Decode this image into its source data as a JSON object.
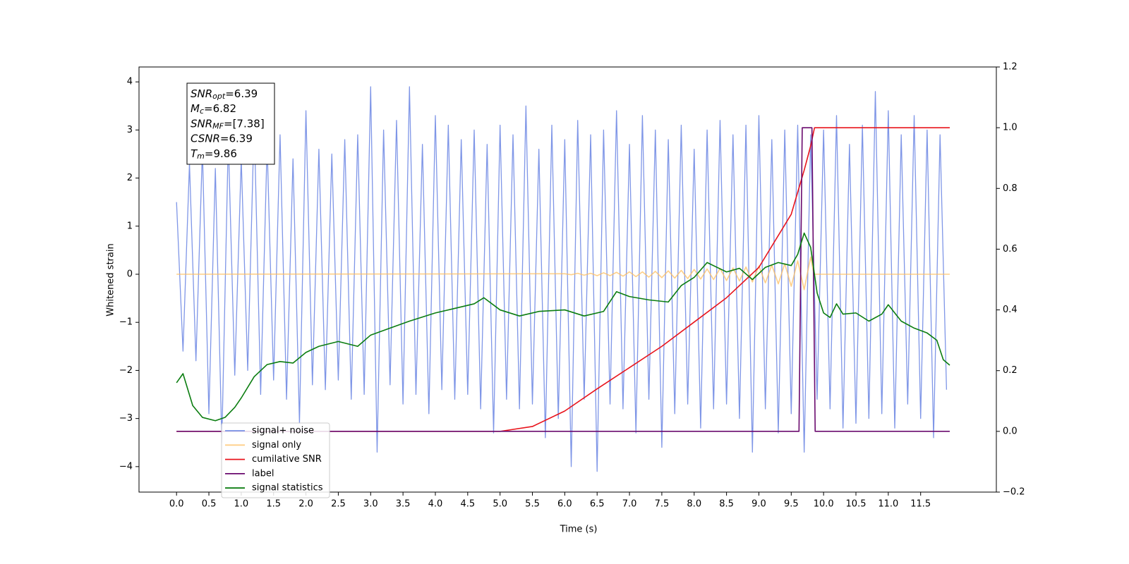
{
  "chart_data": {
    "type": "line",
    "xlabel": "Time (s)",
    "ylabel": "Whitened strain",
    "xlim": [
      -0.58,
      12.67
    ],
    "ylim": [
      -4.53,
      4.31
    ],
    "y2lim": [
      -0.2,
      1.2
    ],
    "xticks": [
      {
        "value": 0,
        "label": "0.0"
      },
      {
        "value": 0.5,
        "label": "0.5"
      },
      {
        "value": 1,
        "label": "1.0"
      },
      {
        "value": 1.5,
        "label": "1.5"
      },
      {
        "value": 2,
        "label": "2.0"
      },
      {
        "value": 2.5,
        "label": "2.5"
      },
      {
        "value": 3,
        "label": "3.0"
      },
      {
        "value": 3.5,
        "label": "3.5"
      },
      {
        "value": 4,
        "label": "4.0"
      },
      {
        "value": 4.5,
        "label": "4.5"
      },
      {
        "value": 5,
        "label": "5.0"
      },
      {
        "value": 5.5,
        "label": "5.5"
      },
      {
        "value": 6,
        "label": "6.0"
      },
      {
        "value": 6.5,
        "label": "6.5"
      },
      {
        "value": 7,
        "label": "7.0"
      },
      {
        "value": 7.5,
        "label": "7.5"
      },
      {
        "value": 8,
        "label": "8.0"
      },
      {
        "value": 8.5,
        "label": "8.5"
      },
      {
        "value": 9,
        "label": "9.0"
      },
      {
        "value": 9.5,
        "label": "9.5"
      },
      {
        "value": 10,
        "label": "10.0"
      },
      {
        "value": 10.5,
        "label": "10.5"
      },
      {
        "value": 11,
        "label": "11.0"
      },
      {
        "value": 11.5,
        "label": "11.5"
      }
    ],
    "yticks": [
      {
        "value": -4,
        "label": "−4"
      },
      {
        "value": -3,
        "label": "−3"
      },
      {
        "value": -2,
        "label": "−2"
      },
      {
        "value": -1,
        "label": "−1"
      },
      0,
      1,
      2,
      3,
      4
    ],
    "y2ticks": [
      {
        "value": -0.2,
        "label": "−0.2"
      },
      {
        "value": 0,
        "label": "0.0"
      },
      0.2,
      0.4,
      0.6,
      0.8,
      {
        "value": 1,
        "label": "1.0"
      },
      1.2
    ],
    "annotations": [
      {
        "symbol": "SNR",
        "subscript": "opt",
        "text": "=6.39"
      },
      {
        "symbol": "M",
        "subscript": "c",
        "text": "=6.82"
      },
      {
        "symbol": "SNR",
        "subscript": "MF",
        "text": "=[7.38]"
      },
      {
        "symbol": "CSNR",
        "text": "=6.39"
      },
      {
        "symbol": "T",
        "subscript": "m",
        "text": "=9.86"
      }
    ],
    "legend": "lower left",
    "series": [
      {
        "name": "signal+ noise",
        "color": "#7890e6",
        "x": [
          0,
          0.1,
          0.2,
          0.3,
          0.4,
          0.5,
          0.6,
          0.7,
          0.8,
          0.9,
          1,
          1.1,
          1.2,
          1.3,
          1.4,
          1.5,
          1.6,
          1.7,
          1.8,
          1.9,
          2,
          2.1,
          2.2,
          2.3,
          2.4,
          2.5,
          2.6,
          2.7,
          2.8,
          2.9,
          3,
          3.1,
          3.2,
          3.3,
          3.4,
          3.5,
          3.6,
          3.7,
          3.8,
          3.9,
          4,
          4.1,
          4.2,
          4.3,
          4.4,
          4.5,
          4.6,
          4.7,
          4.8,
          4.9,
          5,
          5.1,
          5.2,
          5.3,
          5.4,
          5.5,
          5.6,
          5.7,
          5.8,
          5.9,
          6,
          6.1,
          6.2,
          6.3,
          6.4,
          6.5,
          6.6,
          6.7,
          6.8,
          6.9,
          7,
          7.1,
          7.2,
          7.3,
          7.4,
          7.5,
          7.6,
          7.7,
          7.8,
          7.9,
          8,
          8.1,
          8.2,
          8.3,
          8.4,
          8.5,
          8.6,
          8.7,
          8.8,
          8.9,
          9,
          9.1,
          9.2,
          9.3,
          9.4,
          9.5,
          9.6,
          9.7,
          9.8,
          9.9,
          10,
          10.1,
          10.2,
          10.3,
          10.4,
          10.5,
          10.6,
          10.7,
          10.8,
          10.9,
          11,
          11.1,
          11.2,
          11.3,
          11.4,
          11.5,
          11.6,
          11.7,
          11.8,
          11.9
        ],
        "values": [
          1.5,
          -1.6,
          2.3,
          -1.8,
          2.6,
          -2.9,
          2.2,
          -3.5,
          2.8,
          -2.1,
          2.4,
          -2.0,
          3.2,
          -2.5,
          2.7,
          -2.2,
          2.9,
          -2.6,
          2.4,
          -3.1,
          3.4,
          -2.3,
          2.6,
          -2.4,
          2.5,
          -2.2,
          2.8,
          -2.6,
          2.9,
          -2.5,
          3.9,
          -3.7,
          3.0,
          -2.3,
          3.2,
          -2.7,
          3.9,
          -2.5,
          2.7,
          -2.9,
          3.3,
          -2.4,
          3.1,
          -2.6,
          2.8,
          -2.5,
          3.0,
          -2.8,
          2.7,
          -3.3,
          3.1,
          -2.6,
          2.9,
          -2.8,
          3.5,
          -2.7,
          2.6,
          -3.4,
          3.1,
          -3.0,
          2.8,
          -4.0,
          3.2,
          -2.6,
          2.9,
          -4.1,
          3.0,
          -2.7,
          3.4,
          -2.8,
          2.7,
          -3.3,
          3.3,
          -2.6,
          3.0,
          -3.6,
          2.8,
          -2.9,
          3.1,
          -2.7,
          2.6,
          -3.2,
          3.0,
          -2.8,
          3.2,
          -2.7,
          2.9,
          -3.0,
          3.1,
          -3.7,
          3.3,
          -2.8,
          2.8,
          -3.3,
          3.0,
          -2.9,
          3.1,
          -3.7,
          2.9,
          -2.6,
          3.0,
          -2.8,
          3.3,
          -3.2,
          2.7,
          -3.1,
          3.1,
          -3.0,
          3.8,
          -2.9,
          3.4,
          -3.2,
          2.9,
          -2.7,
          3.3,
          -3.0,
          3.0,
          -3.4,
          2.9,
          -2.4
        ]
      },
      {
        "name": "signal only",
        "color": "#ffbf60",
        "x": [
          0,
          6,
          6.1,
          6.2,
          6.3,
          6.4,
          6.5,
          6.6,
          6.7,
          6.8,
          6.9,
          7,
          7.1,
          7.2,
          7.3,
          7.4,
          7.5,
          7.6,
          7.7,
          7.8,
          7.9,
          8,
          8.1,
          8.2,
          8.3,
          8.4,
          8.5,
          8.6,
          8.7,
          8.8,
          8.9,
          9,
          9.1,
          9.2,
          9.3,
          9.4,
          9.5,
          9.6,
          9.7,
          9.8,
          9.85,
          11.95
        ],
        "values": [
          0,
          0.01,
          -0.01,
          0.02,
          -0.02,
          0.02,
          -0.03,
          0.03,
          -0.03,
          0.04,
          -0.04,
          0.05,
          -0.05,
          0.05,
          -0.06,
          0.06,
          -0.07,
          0.07,
          -0.08,
          0.08,
          -0.09,
          0.1,
          -0.1,
          0.11,
          -0.11,
          0.12,
          -0.13,
          0.13,
          -0.14,
          0.15,
          -0.16,
          0.17,
          -0.18,
          0.19,
          -0.2,
          0.22,
          -0.25,
          0.28,
          -0.32,
          0.36,
          0,
          0
        ]
      },
      {
        "name": "cumilative SNR",
        "color": "#e8141c",
        "axis": "y2",
        "x": [
          0,
          5,
          5.5,
          6,
          6.5,
          7,
          7.5,
          8,
          8.5,
          9,
          9.5,
          9.7,
          9.8,
          9.86,
          11.95
        ],
        "values": [
          0,
          0,
          0.016,
          0.067,
          0.14,
          0.21,
          0.28,
          0.36,
          0.44,
          0.54,
          0.715,
          0.86,
          0.94,
          1,
          1
        ]
      },
      {
        "name": "label",
        "color": "#6a0a6e",
        "axis": "y2",
        "x": [
          0,
          9.62,
          9.67,
          9.82,
          9.87,
          11.95
        ],
        "values": [
          0,
          0,
          1,
          1,
          0,
          0
        ]
      },
      {
        "name": "signal statistics",
        "color": "#0b7d10",
        "axis": "y2",
        "x": [
          0,
          0.1,
          0.25,
          0.4,
          0.6,
          0.75,
          0.9,
          1,
          1.2,
          1.4,
          1.6,
          1.8,
          2,
          2.2,
          2.5,
          2.8,
          3,
          3.3,
          3.6,
          4,
          4.3,
          4.6,
          4.75,
          5,
          5.3,
          5.6,
          6,
          6.3,
          6.6,
          6.8,
          7,
          7.3,
          7.6,
          7.8,
          8,
          8.2,
          8.5,
          8.7,
          8.9,
          9.1,
          9.3,
          9.5,
          9.6,
          9.7,
          9.8,
          9.9,
          10,
          10.1,
          10.2,
          10.3,
          10.5,
          10.7,
          10.9,
          11,
          11.2,
          11.4,
          11.6,
          11.75,
          11.85,
          11.95
        ],
        "values": [
          0.16,
          0.19,
          0.085,
          0.046,
          0.035,
          0.046,
          0.079,
          0.11,
          0.18,
          0.22,
          0.23,
          0.225,
          0.26,
          0.28,
          0.296,
          0.28,
          0.317,
          0.34,
          0.363,
          0.39,
          0.405,
          0.42,
          0.44,
          0.4,
          0.38,
          0.395,
          0.4,
          0.38,
          0.395,
          0.46,
          0.444,
          0.433,
          0.426,
          0.48,
          0.507,
          0.556,
          0.525,
          0.537,
          0.5,
          0.54,
          0.556,
          0.546,
          0.583,
          0.653,
          0.606,
          0.456,
          0.39,
          0.375,
          0.42,
          0.386,
          0.39,
          0.363,
          0.386,
          0.417,
          0.363,
          0.34,
          0.324,
          0.3,
          0.236,
          0.218
        ]
      }
    ]
  }
}
